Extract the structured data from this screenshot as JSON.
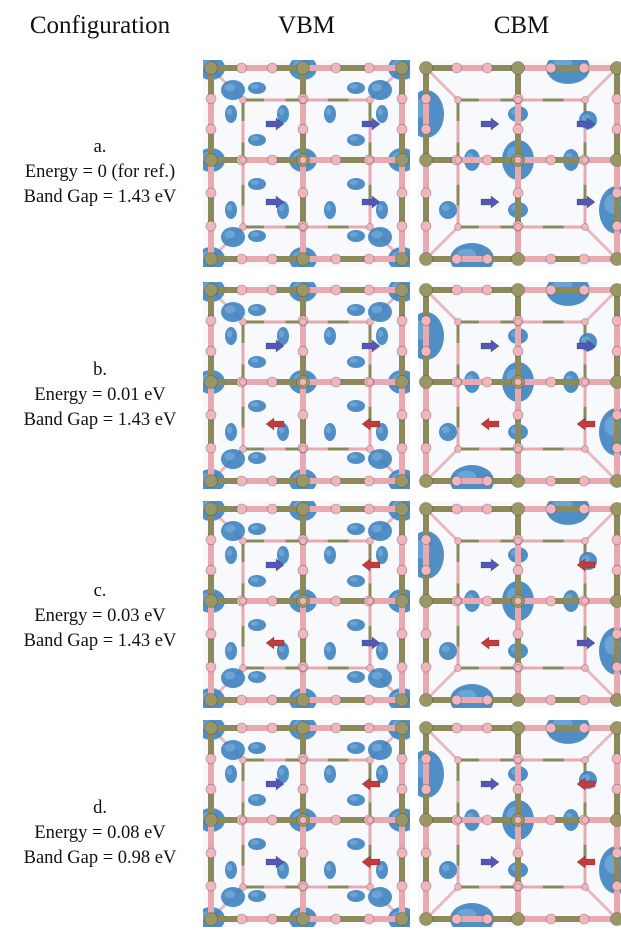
{
  "headers": {
    "configuration": "Configuration",
    "vbm": "VBM",
    "cbm": "CBM"
  },
  "rows": [
    {
      "letter": "a.",
      "energy": "Energy = 0 (for ref.)",
      "gap": "Band Gap = 1.43 eV",
      "arrows": {
        "top_left": "right",
        "top_right": "right",
        "bottom_left": "right",
        "bottom_right": "right"
      }
    },
    {
      "letter": "b.",
      "energy": "Energy = 0.01 eV",
      "gap": "Band Gap = 1.43 eV",
      "arrows": {
        "top_left": "right",
        "top_right": "right",
        "bottom_left": "left",
        "bottom_right": "left"
      }
    },
    {
      "letter": "c.",
      "energy": "Energy = 0.03 eV",
      "gap": "Band Gap = 1.43 eV",
      "arrows": {
        "top_left": "right",
        "top_right": "left",
        "bottom_left": "left",
        "bottom_right": "right"
      }
    },
    {
      "letter": "d.",
      "energy": "Energy = 0.08 eV",
      "gap": "Band Gap = 0.98 eV",
      "arrows": {
        "top_left": "right",
        "top_right": "left",
        "bottom_left": "right",
        "bottom_right": "left"
      }
    }
  ],
  "colors": {
    "bond_olive": "#8c8a5a",
    "bond_pink": "#e8a9b0",
    "atom_olive": "#9a9765",
    "atom_pink": "#f0b5bd",
    "orbital_blue": "#3d82c0",
    "orbital_dark": "#1f4f7d",
    "arrow_right_blue": "#5358b8",
    "arrow_left_red": "#c43b3b"
  }
}
